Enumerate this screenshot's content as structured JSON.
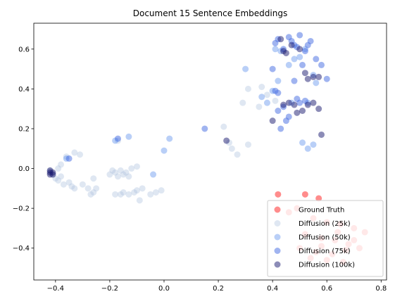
{
  "chart_data": {
    "type": "scatter",
    "title": "Document 15 Sentence Embeddings",
    "xlabel": "",
    "ylabel": "",
    "xlim": [
      -0.48,
      0.82
    ],
    "ylim": [
      -0.56,
      0.73
    ],
    "xticks": [
      -0.4,
      -0.2,
      0.0,
      0.2,
      0.4,
      0.6,
      0.8
    ],
    "xtick_labels": [
      "−0.4",
      "−0.2",
      "0.0",
      "0.2",
      "0.4",
      "0.6",
      "0.8"
    ],
    "yticks": [
      -0.4,
      -0.2,
      0.0,
      0.2,
      0.4,
      0.6
    ],
    "ytick_labels": [
      "−0.4",
      "−0.2",
      "0.0",
      "0.2",
      "0.4",
      "0.6"
    ],
    "grid": false,
    "legend_position": "lower-right",
    "series": [
      {
        "name": "Ground Truth",
        "color": "#ff0000",
        "alpha": 0.45,
        "points": [
          [
            0.42,
            -0.13
          ],
          [
            0.52,
            -0.13
          ],
          [
            0.57,
            -0.15
          ],
          [
            0.46,
            -0.22
          ],
          [
            0.49,
            -0.2
          ],
          [
            0.55,
            -0.25
          ],
          [
            0.6,
            -0.27
          ],
          [
            0.65,
            -0.28
          ],
          [
            0.7,
            -0.3
          ],
          [
            0.74,
            -0.32
          ],
          [
            0.52,
            -0.33
          ],
          [
            0.58,
            -0.35
          ],
          [
            0.63,
            -0.36
          ],
          [
            0.68,
            -0.38
          ],
          [
            0.5,
            -0.4
          ],
          [
            0.56,
            -0.42
          ],
          [
            0.62,
            -0.43
          ],
          [
            0.67,
            -0.41
          ],
          [
            0.72,
            -0.4
          ],
          [
            0.6,
            -0.46
          ],
          [
            0.54,
            -0.45
          ],
          [
            0.66,
            -0.47
          ],
          [
            0.58,
            -0.39
          ],
          [
            0.64,
            -0.32
          ],
          [
            0.7,
            -0.36
          ]
        ]
      },
      {
        "name": "Diffusion (25k)",
        "color": "#b0c4de",
        "alpha": 0.4,
        "points": [
          [
            -0.42,
            -0.01
          ],
          [
            -0.41,
            -0.03
          ],
          [
            -0.4,
            -0.05
          ],
          [
            -0.39,
            -0.06
          ],
          [
            -0.38,
            -0.04
          ],
          [
            -0.37,
            -0.08
          ],
          [
            -0.35,
            -0.07
          ],
          [
            -0.34,
            -0.09
          ],
          [
            -0.33,
            -0.1
          ],
          [
            -0.3,
            -0.08
          ],
          [
            -0.28,
            -0.1
          ],
          [
            -0.27,
            -0.13
          ],
          [
            -0.26,
            -0.12
          ],
          [
            -0.25,
            -0.1
          ],
          [
            -0.26,
            -0.05
          ],
          [
            -0.33,
            0.08
          ],
          [
            -0.31,
            0.07
          ],
          [
            -0.36,
            0.06
          ],
          [
            -0.38,
            0.02
          ],
          [
            -0.39,
            0.0
          ],
          [
            -0.2,
            -0.03
          ],
          [
            -0.19,
            -0.01
          ],
          [
            -0.18,
            -0.02
          ],
          [
            -0.17,
            -0.04
          ],
          [
            -0.16,
            -0.01
          ],
          [
            -0.15,
            -0.03
          ],
          [
            -0.14,
            -0.02
          ],
          [
            -0.13,
            -0.04
          ],
          [
            -0.12,
            0.0
          ],
          [
            -0.1,
            0.01
          ],
          [
            -0.18,
            -0.13
          ],
          [
            -0.16,
            -0.13
          ],
          [
            -0.15,
            -0.12
          ],
          [
            -0.13,
            -0.13
          ],
          [
            -0.11,
            -0.12
          ],
          [
            -0.1,
            -0.11
          ],
          [
            -0.09,
            -0.16
          ],
          [
            -0.08,
            -0.1
          ],
          [
            -0.05,
            -0.13
          ],
          [
            -0.03,
            -0.12
          ],
          [
            -0.01,
            -0.11
          ],
          [
            -0.17,
            0.14
          ],
          [
            0.22,
            0.21
          ],
          [
            0.24,
            0.13
          ],
          [
            0.25,
            0.1
          ],
          [
            0.27,
            0.07
          ],
          [
            0.31,
            0.12
          ],
          [
            0.29,
            0.33
          ],
          [
            0.31,
            0.4
          ],
          [
            0.35,
            0.31
          ],
          [
            0.36,
            0.41
          ],
          [
            0.38,
            0.37
          ],
          [
            0.41,
            0.34
          ]
        ]
      },
      {
        "name": "Diffusion (50k)",
        "color": "#6495ed",
        "alpha": 0.45,
        "points": [
          [
            -0.36,
            0.05
          ],
          [
            -0.18,
            0.14
          ],
          [
            -0.13,
            0.16
          ],
          [
            -0.04,
            -0.03
          ],
          [
            0.0,
            0.09
          ],
          [
            0.02,
            0.15
          ],
          [
            0.3,
            0.5
          ],
          [
            0.36,
            0.36
          ],
          [
            0.38,
            0.33
          ],
          [
            0.4,
            0.39
          ],
          [
            0.42,
            0.44
          ],
          [
            0.41,
            0.6
          ],
          [
            0.43,
            0.59
          ],
          [
            0.46,
            0.52
          ],
          [
            0.48,
            0.55
          ],
          [
            0.5,
            0.56
          ],
          [
            0.52,
            0.6
          ],
          [
            0.55,
            0.47
          ],
          [
            0.56,
            0.43
          ],
          [
            0.53,
            0.33
          ],
          [
            0.51,
            0.13
          ],
          [
            0.53,
            0.1
          ],
          [
            0.55,
            0.12
          ],
          [
            0.47,
            0.33
          ]
        ]
      },
      {
        "name": "Diffusion (75k)",
        "color": "#4169e1",
        "alpha": 0.5,
        "points": [
          [
            -0.35,
            0.05
          ],
          [
            -0.17,
            0.15
          ],
          [
            0.15,
            0.2
          ],
          [
            0.4,
            0.5
          ],
          [
            0.42,
            0.38
          ],
          [
            0.42,
            0.29
          ],
          [
            0.41,
            0.63
          ],
          [
            0.42,
            0.65
          ],
          [
            0.44,
            0.6
          ],
          [
            0.46,
            0.66
          ],
          [
            0.47,
            0.64
          ],
          [
            0.48,
            0.62
          ],
          [
            0.5,
            0.67
          ],
          [
            0.49,
            0.61
          ],
          [
            0.52,
            0.59
          ],
          [
            0.53,
            0.62
          ],
          [
            0.54,
            0.64
          ],
          [
            0.56,
            0.55
          ],
          [
            0.58,
            0.52
          ],
          [
            0.6,
            0.45
          ],
          [
            0.48,
            0.44
          ],
          [
            0.51,
            0.52
          ],
          [
            0.44,
            0.31
          ],
          [
            0.45,
            0.24
          ],
          [
            0.46,
            0.26
          ],
          [
            0.49,
            0.35
          ],
          [
            0.5,
            0.33
          ],
          [
            0.52,
            0.34
          ],
          [
            0.43,
            0.2
          ],
          [
            0.41,
            0.39
          ]
        ]
      },
      {
        "name": "Diffusion (100k)",
        "color": "#191970",
        "alpha": 0.5,
        "points": [
          [
            0.23,
            0.14
          ],
          [
            0.4,
            0.24
          ],
          [
            0.44,
            0.59
          ],
          [
            0.45,
            0.58
          ],
          [
            0.47,
            0.62
          ],
          [
            0.5,
            0.6
          ],
          [
            0.52,
            0.48
          ],
          [
            0.53,
            0.45
          ],
          [
            0.55,
            0.46
          ],
          [
            0.57,
            0.46
          ],
          [
            0.44,
            0.32
          ],
          [
            0.46,
            0.33
          ],
          [
            0.48,
            0.32
          ],
          [
            0.49,
            0.28
          ],
          [
            0.51,
            0.29
          ],
          [
            0.53,
            0.32
          ],
          [
            0.55,
            0.33
          ],
          [
            0.57,
            0.3
          ],
          [
            0.58,
            0.17
          ],
          [
            0.43,
            0.65
          ],
          [
            -0.42,
            -0.02
          ],
          [
            -0.42,
            -0.03
          ],
          [
            -0.41,
            -0.02
          ],
          [
            -0.42,
            -0.01
          ],
          [
            -0.41,
            -0.03
          ]
        ]
      }
    ]
  }
}
